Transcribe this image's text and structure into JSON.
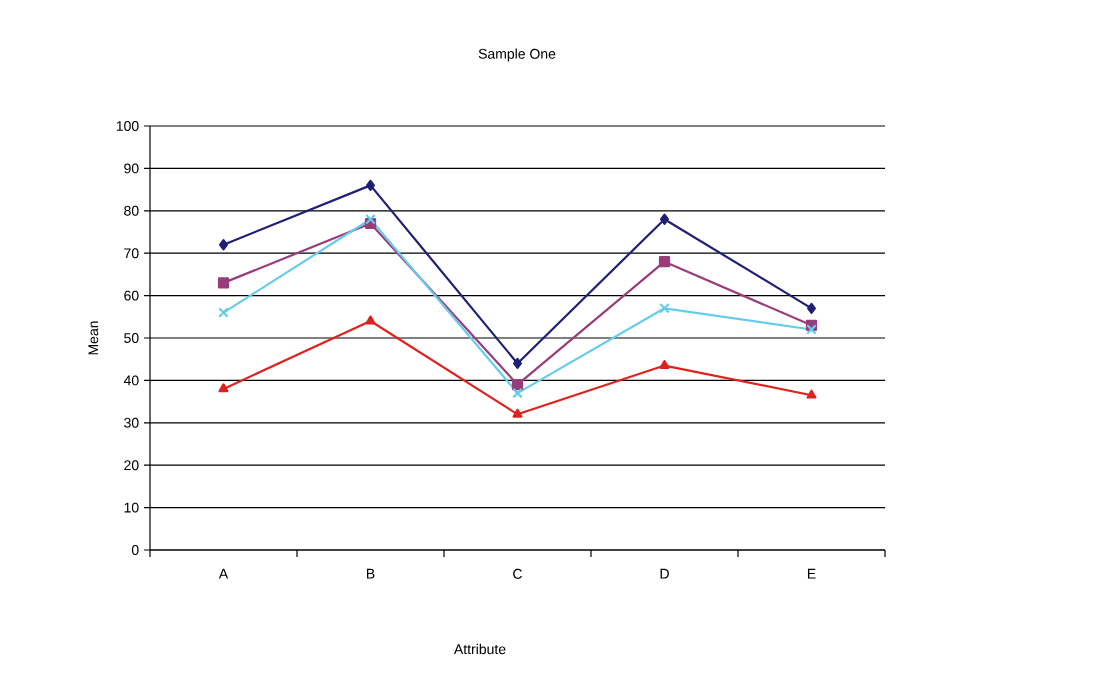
{
  "chart_data": {
    "type": "line",
    "title": "Sample One",
    "xlabel": "Attribute",
    "ylabel": "Mean",
    "categories": [
      "A",
      "B",
      "C",
      "D",
      "E"
    ],
    "series": [
      {
        "color": "#1f1f78",
        "marker": "diamond",
        "values": [
          72,
          86,
          44,
          78,
          57
        ]
      },
      {
        "color": "#993d7a",
        "marker": "square",
        "values": [
          63,
          77,
          39,
          68,
          53
        ]
      },
      {
        "color": "#66ccee",
        "marker": "cross",
        "values": [
          56,
          78,
          37,
          57,
          52
        ]
      },
      {
        "color": "#e0221e",
        "marker": "triangle",
        "values": [
          38,
          54,
          32,
          43.5,
          36.5
        ]
      }
    ],
    "ylim": [
      0,
      100
    ],
    "yticks": [
      0,
      10,
      20,
      30,
      40,
      50,
      60,
      70,
      80,
      90,
      100
    ],
    "grid": "y"
  }
}
